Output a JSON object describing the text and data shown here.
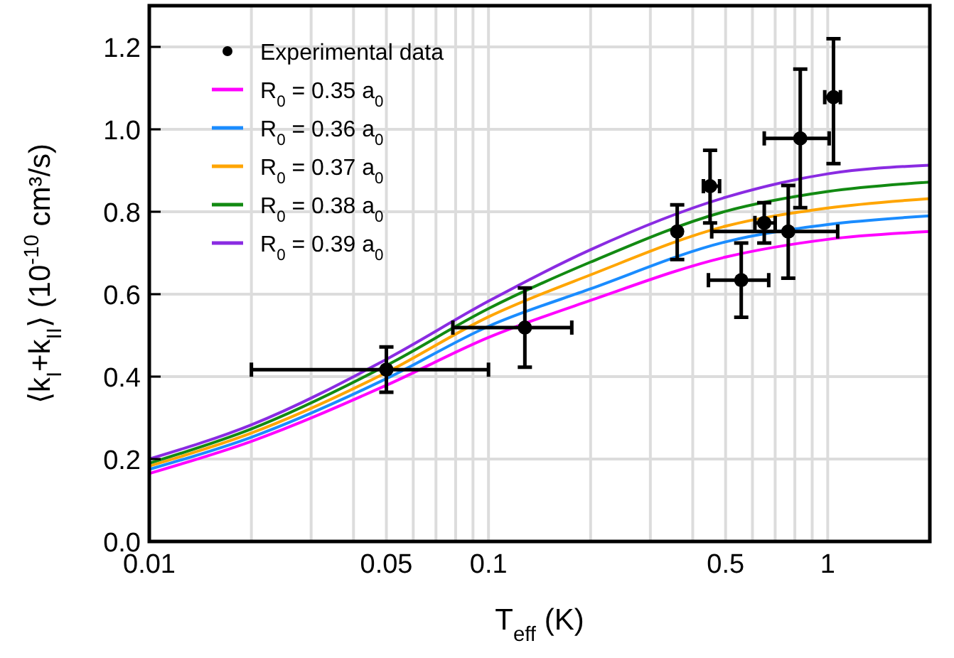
{
  "chart_data": {
    "type": "line",
    "xlabel": "T$_{eff}$ (K)",
    "ylabel": "⟨k$_{I}$+k$_{II}$⟩ (10$^{-10}$ cm³/s)",
    "log": "x",
    "grid": true,
    "legend": "top left",
    "xlim": [
      0.01,
      2
    ],
    "ylim": [
      0,
      1.3
    ],
    "xticks": [
      0.01,
      {
        "value": 0.02,
        "label": null
      },
      {
        "value": 0.03,
        "label": null
      },
      {
        "value": 0.04,
        "label": null
      },
      0.05,
      {
        "value": 0.06,
        "label": null
      },
      {
        "value": 0.07,
        "label": null
      },
      {
        "value": 0.08,
        "label": null
      },
      {
        "value": 0.09,
        "label": null
      },
      0.1,
      {
        "value": 0.2,
        "label": null
      },
      {
        "value": 0.3,
        "label": null
      },
      {
        "value": 0.4,
        "label": null
      },
      0.5,
      {
        "value": 0.6,
        "label": null
      },
      {
        "value": 0.7,
        "label": null
      },
      {
        "value": 0.8,
        "label": null
      },
      {
        "value": 0.9,
        "label": null
      },
      1,
      {
        "value": 2,
        "label": null
      }
    ],
    "yticks": [
      {
        "value": 0,
        "label": "0.0"
      },
      {
        "value": 0.2,
        "label": "0.2"
      },
      {
        "value": 0.4,
        "label": "0.4"
      },
      {
        "value": 0.6,
        "label": "0.6"
      },
      {
        "value": 0.8,
        "label": "0.8"
      },
      {
        "value": 1,
        "label": "1.0"
      },
      {
        "value": 1.2,
        "label": "1.2"
      }
    ],
    "series": [
      {
        "name": "Experimental data",
        "type": "scatter",
        "color": "#000000",
        "marker": "circle",
        "x": [
          0.05,
          0.128,
          0.36,
          0.45,
          0.556,
          0.65,
          0.765,
          0.83,
          1.04
        ],
        "values": [
          0.417,
          0.519,
          0.752,
          0.862,
          0.634,
          0.773,
          0.752,
          0.978,
          1.078
        ],
        "errors": [
          [
            0.362,
            0.472
          ],
          [
            0.423,
            0.615
          ],
          [
            0.684,
            0.817
          ],
          [
            0.773,
            0.949
          ],
          [
            0.544,
            0.724
          ],
          [
            0.724,
            0.822
          ],
          [
            0.639,
            0.864
          ],
          [
            0.81,
            1.146
          ],
          [
            0.917,
            1.22
          ]
        ],
        "xerrors": [
          [
            0.02,
            0.1
          ],
          [
            0.0785,
            0.176
          ],
          null,
          [
            0.43,
            0.48
          ],
          [
            0.445,
            0.67
          ],
          [
            0.61,
            0.7
          ],
          [
            0.455,
            1.07
          ],
          [
            0.65,
            1.01
          ],
          [
            0.98,
            1.09
          ]
        ]
      },
      {
        "name": "R$_{0}$ = 0.35 a$_{0}$",
        "color": "#ff00ff",
        "x": [
          0.01,
          0.02,
          0.05,
          0.1,
          0.2,
          0.5,
          1,
          2
        ],
        "values": [
          0.165,
          0.243,
          0.379,
          0.495,
          0.585,
          0.69,
          0.733,
          0.752
        ]
      },
      {
        "name": "R$_{0}$ = 0.36 a$_{0}$",
        "color": "#1a8cff",
        "x": [
          0.01,
          0.02,
          0.05,
          0.1,
          0.2,
          0.5,
          1,
          2
        ],
        "values": [
          0.175,
          0.253,
          0.395,
          0.522,
          0.613,
          0.727,
          0.769,
          0.79
        ]
      },
      {
        "name": "R$_{0}$ = 0.37 a$_{0}$",
        "color": "#ffa500",
        "x": [
          0.01,
          0.02,
          0.05,
          0.1,
          0.2,
          0.5,
          1,
          2
        ],
        "values": [
          0.183,
          0.263,
          0.41,
          0.545,
          0.647,
          0.765,
          0.809,
          0.832
        ]
      },
      {
        "name": "R$_{0}$ = 0.38 a$_{0}$",
        "color": "#128a12",
        "x": [
          0.01,
          0.02,
          0.05,
          0.1,
          0.2,
          0.5,
          1,
          2
        ],
        "values": [
          0.19,
          0.273,
          0.427,
          0.565,
          0.678,
          0.801,
          0.849,
          0.872
        ]
      },
      {
        "name": "R$_{0}$ = 0.39 a$_{0}$",
        "color": "#8a2be2",
        "x": [
          0.01,
          0.02,
          0.05,
          0.1,
          0.2,
          0.5,
          1,
          2
        ],
        "values": [
          0.2,
          0.283,
          0.442,
          0.583,
          0.708,
          0.835,
          0.892,
          0.913
        ]
      }
    ]
  }
}
